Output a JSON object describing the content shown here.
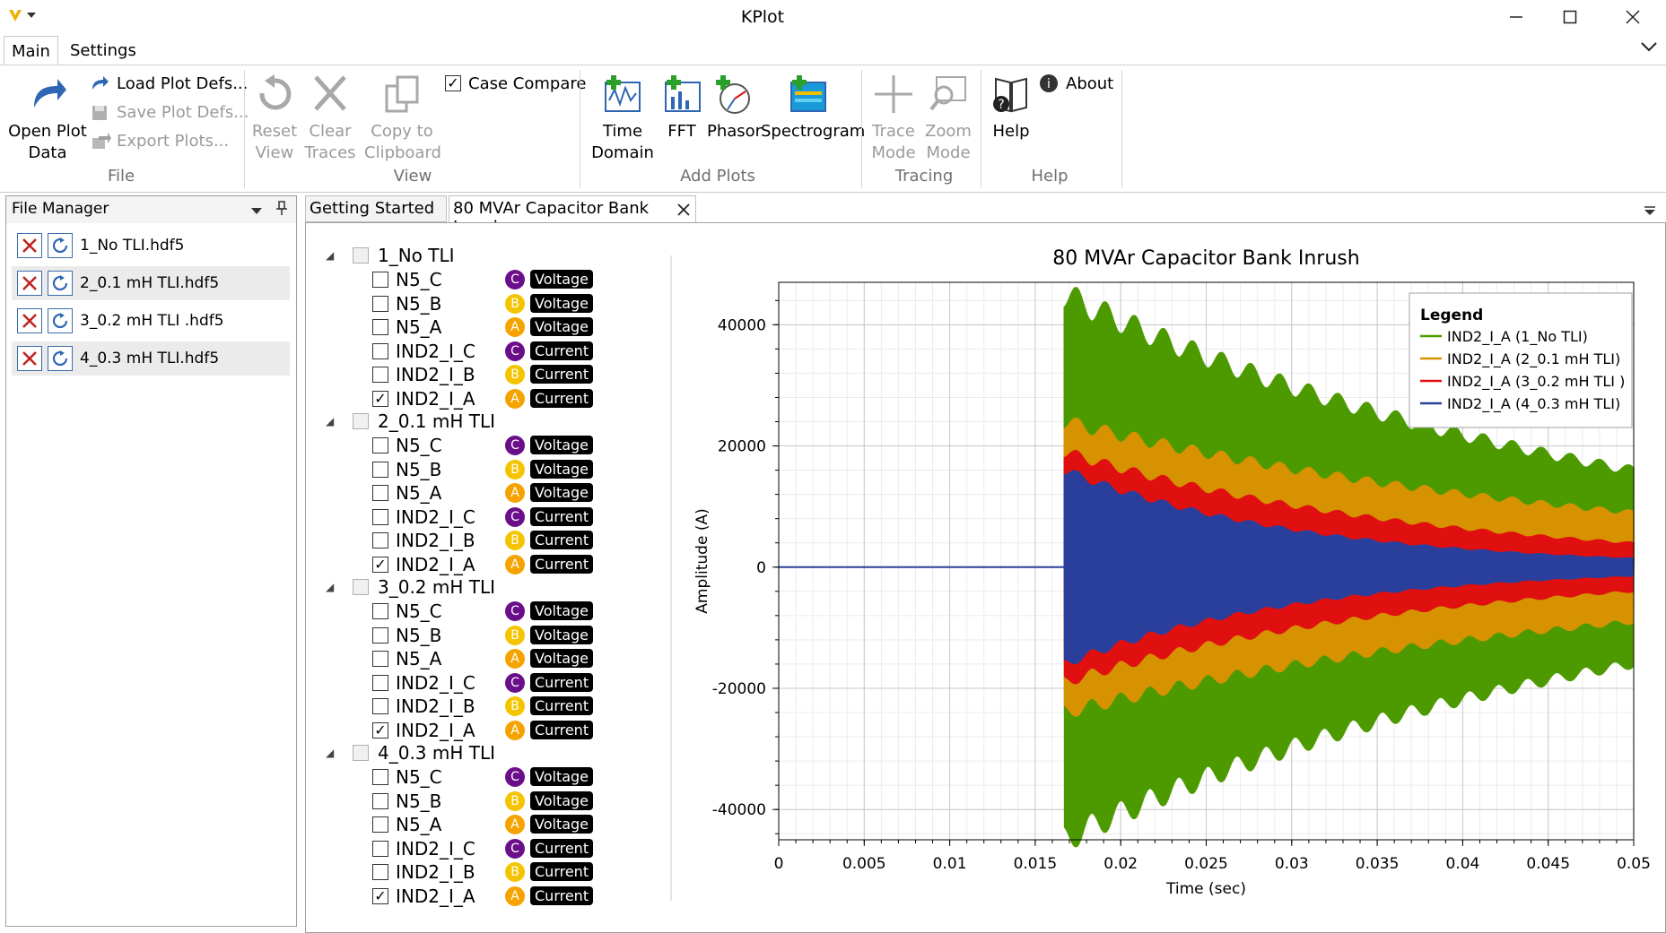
{
  "app": {
    "title": "KPlot"
  },
  "ribbon_tabs": [
    {
      "label": "Main"
    },
    {
      "label": "Settings"
    }
  ],
  "ribbon": {
    "open_plot_data": "Open Plot\nData",
    "open_line1": "Open Plot",
    "open_line2": "Data",
    "load_plot_defs": "Load Plot Defs...",
    "save_plot_defs": "Save Plot Defs...",
    "export_plots": "Export Plots...",
    "file_group": "File",
    "reset_1": "Reset",
    "reset_2": "View",
    "clear_1": "Clear",
    "clear_2": "Traces",
    "copy_1": "Copy to",
    "copy_2": "Clipboard",
    "case_compare": "Case Compare",
    "view_group": "View",
    "time_1": "Time",
    "time_2": "Domain",
    "fft": "FFT",
    "phasor": "Phasor",
    "spectrogram": "Spectrogram",
    "add_plots_group": "Add Plots",
    "trace_1": "Trace",
    "trace_2": "Mode",
    "zoom_1": "Zoom",
    "zoom_2": "Mode",
    "tracing_group": "Tracing",
    "help": "Help",
    "about": "About",
    "help_group": "Help"
  },
  "file_manager": {
    "title": "File Manager",
    "files": [
      "1_No TLI.hdf5",
      "2_0.1 mH TLI.hdf5",
      "3_0.2 mH TLI .hdf5",
      "4_0.3 mH TLI.hdf5"
    ]
  },
  "doc_tabs": [
    {
      "label": "Getting Started"
    },
    {
      "label": "80 MVAr Capacitor Bank Inrush"
    }
  ],
  "tree": {
    "groups": [
      {
        "name": "1_No TLI",
        "items": [
          {
            "name": "N5_C",
            "phase": "C",
            "type": "Voltage",
            "checked": false
          },
          {
            "name": "N5_B",
            "phase": "B",
            "type": "Voltage",
            "checked": false
          },
          {
            "name": "N5_A",
            "phase": "A",
            "type": "Voltage",
            "checked": false
          },
          {
            "name": "IND2_I_C",
            "phase": "C",
            "type": "Current",
            "checked": false
          },
          {
            "name": "IND2_I_B",
            "phase": "B",
            "type": "Current",
            "checked": false
          },
          {
            "name": "IND2_I_A",
            "phase": "A",
            "type": "Current",
            "checked": true
          }
        ]
      },
      {
        "name": "2_0.1 mH TLI",
        "items": [
          {
            "name": "N5_C",
            "phase": "C",
            "type": "Voltage",
            "checked": false
          },
          {
            "name": "N5_B",
            "phase": "B",
            "type": "Voltage",
            "checked": false
          },
          {
            "name": "N5_A",
            "phase": "A",
            "type": "Voltage",
            "checked": false
          },
          {
            "name": "IND2_I_C",
            "phase": "C",
            "type": "Current",
            "checked": false
          },
          {
            "name": "IND2_I_B",
            "phase": "B",
            "type": "Current",
            "checked": false
          },
          {
            "name": "IND2_I_A",
            "phase": "A",
            "type": "Current",
            "checked": true
          }
        ]
      },
      {
        "name": "3_0.2 mH TLI",
        "items": [
          {
            "name": "N5_C",
            "phase": "C",
            "type": "Voltage",
            "checked": false
          },
          {
            "name": "N5_B",
            "phase": "B",
            "type": "Voltage",
            "checked": false
          },
          {
            "name": "N5_A",
            "phase": "A",
            "type": "Voltage",
            "checked": false
          },
          {
            "name": "IND2_I_C",
            "phase": "C",
            "type": "Current",
            "checked": false
          },
          {
            "name": "IND2_I_B",
            "phase": "B",
            "type": "Current",
            "checked": false
          },
          {
            "name": "IND2_I_A",
            "phase": "A",
            "type": "Current",
            "checked": true
          }
        ]
      },
      {
        "name": "4_0.3 mH TLI",
        "items": [
          {
            "name": "N5_C",
            "phase": "C",
            "type": "Voltage",
            "checked": false
          },
          {
            "name": "N5_B",
            "phase": "B",
            "type": "Voltage",
            "checked": false
          },
          {
            "name": "N5_A",
            "phase": "A",
            "type": "Voltage",
            "checked": false
          },
          {
            "name": "IND2_I_C",
            "phase": "C",
            "type": "Current",
            "checked": false
          },
          {
            "name": "IND2_I_B",
            "phase": "B",
            "type": "Current",
            "checked": false
          },
          {
            "name": "IND2_I_A",
            "phase": "A",
            "type": "Current",
            "checked": true
          }
        ]
      }
    ],
    "phase_colors": {
      "A": "#f5a300",
      "B": "#f5c400",
      "C": "#6b0e8a"
    }
  },
  "chart_data": {
    "type": "line",
    "title": "80 MVAr Capacitor Bank Inrush",
    "xlabel": "Time (sec)",
    "ylabel": "Amplitude (A)",
    "xlim": [
      0,
      0.05
    ],
    "ylim": [
      -45000,
      47000
    ],
    "xticks": [
      0,
      0.005,
      0.01,
      0.015,
      0.02,
      0.025,
      0.03,
      0.035,
      0.04,
      0.045,
      0.05
    ],
    "xtick_labels": [
      "0",
      "0.005",
      "0.01",
      "0.015",
      "0.02",
      "0.025",
      "0.03",
      "0.035",
      "0.04",
      "0.045",
      "0.05"
    ],
    "yticks": [
      -40000,
      -20000,
      0,
      20000,
      40000
    ],
    "ytick_labels": [
      "-40000",
      "-20000",
      "0",
      "20000",
      "40000"
    ],
    "grid": true,
    "legend_title": "Legend",
    "legend_position": "top-right",
    "switch_time": 0.0167,
    "series": [
      {
        "name": "IND2_I_A (1_No TLI)",
        "color": "#4c9a00",
        "envelope_start": 45000,
        "envelope_end": 16000
      },
      {
        "name": "IND2_I_A (2_0.1 mH TLI)",
        "color": "#d69200",
        "envelope_start": 24000,
        "envelope_end": 9000
      },
      {
        "name": "IND2_I_A (3_0.2 mH TLI )",
        "color": "#e01010",
        "envelope_start": 19000,
        "envelope_end": 4000
      },
      {
        "name": "IND2_I_A (4_0.3 mH TLI)",
        "color": "#2a3f9c",
        "envelope_start": 16000,
        "envelope_end": 1500
      }
    ]
  }
}
